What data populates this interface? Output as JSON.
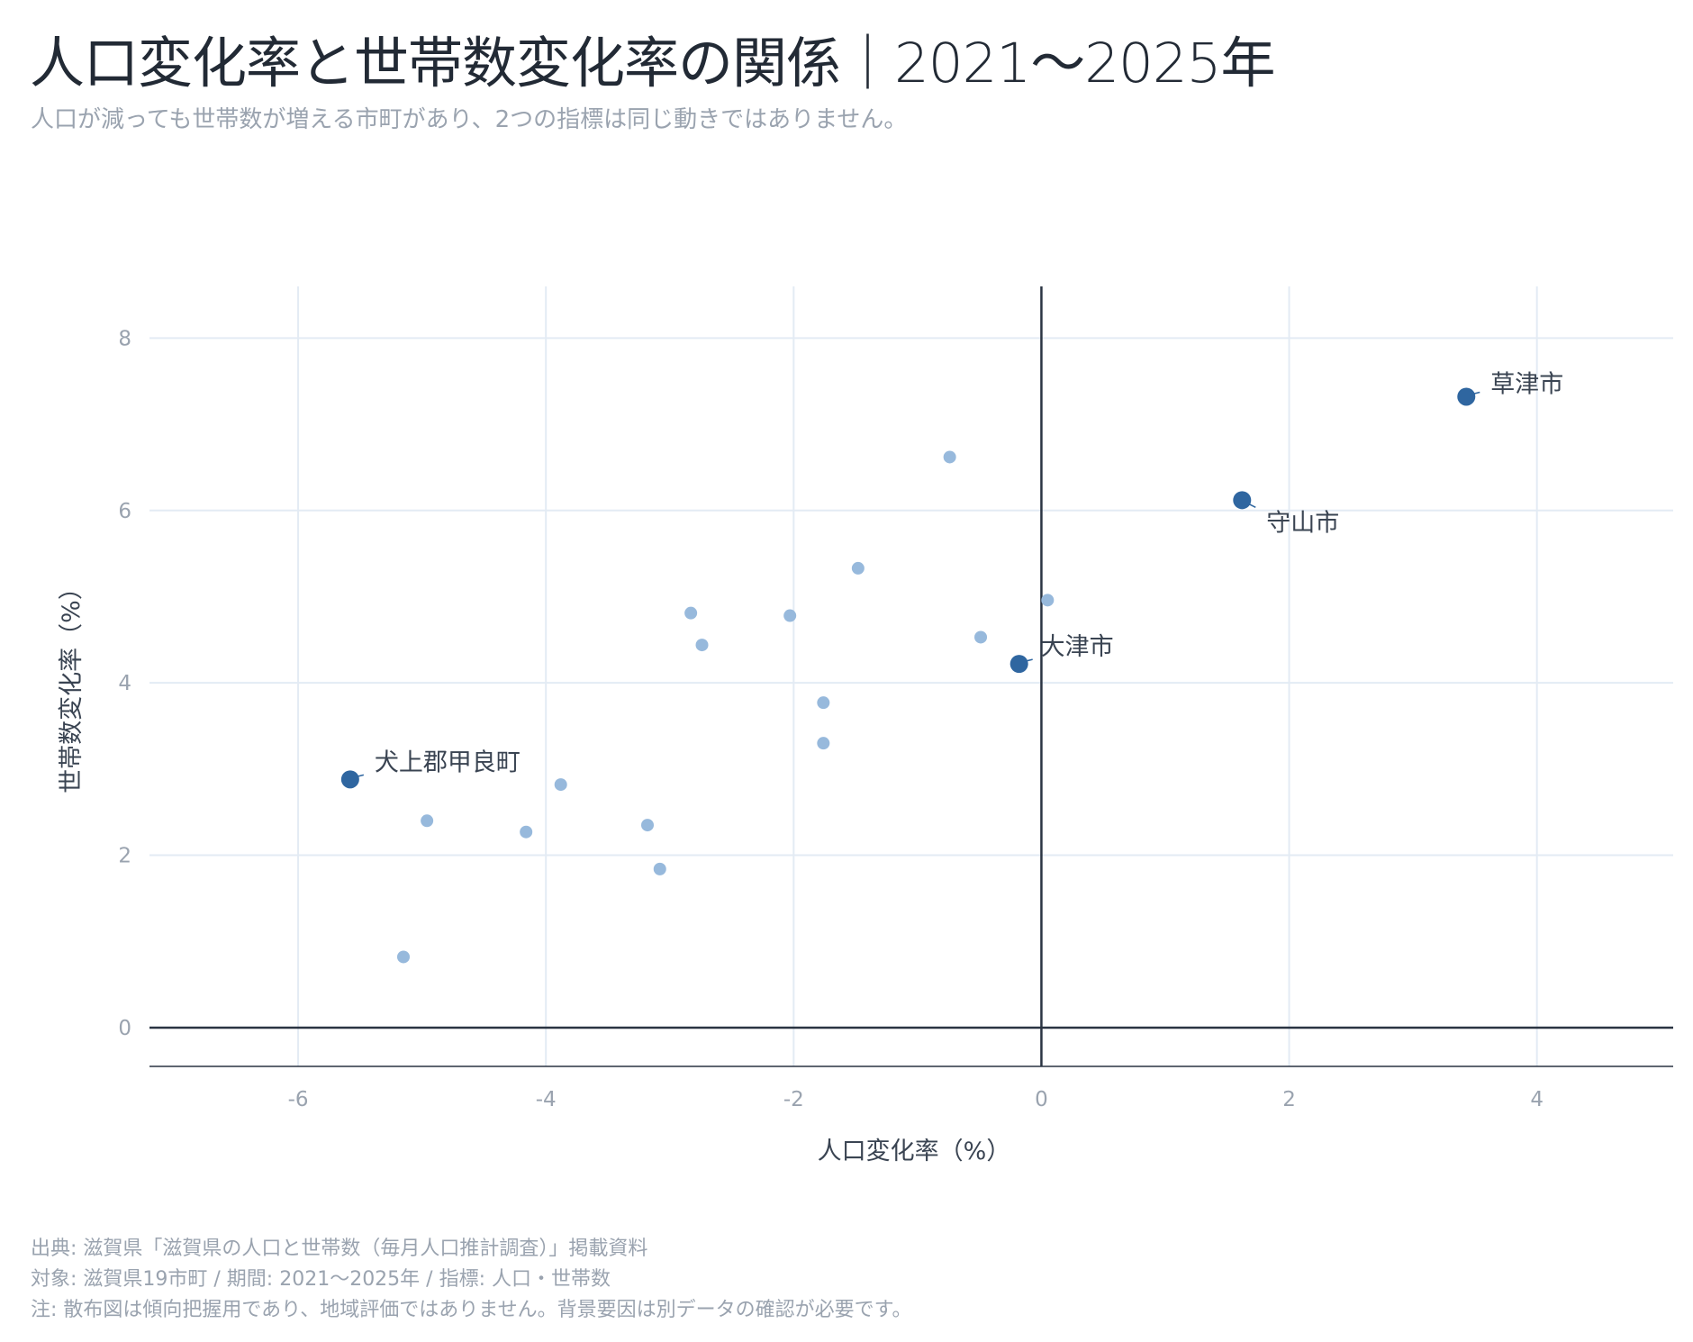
{
  "title": "人口変化率と世帯数変化率の関係｜2021〜2025年",
  "subtitle": "人口が減っても世帯数が増える市町があり、2つの指標は同じ動きではありません。",
  "footer": {
    "source": "出典: 滋賀県「滋賀県の人口と世帯数（毎月人口推計調査）」掲載資料",
    "scope": "対象: 滋賀県19市町 / 期間: 2021〜2025年 / 指標: 人口・世帯数",
    "note": "注: 散布図は傾向把握用であり、地域評価ではありません。背景要因は別データの確認が必要です。"
  },
  "colors": {
    "highlight": "#2f66a0",
    "point": "#97b9dc",
    "grid": "#e3ebf4",
    "axis": "#2a3442",
    "tick": "#9aa3af",
    "label": "#3a4452"
  },
  "chart_data": {
    "type": "scatter",
    "xlabel": "人口変化率（%）",
    "ylabel": "世帯数変化率（%）",
    "xlim": [
      -7.2,
      5.1
    ],
    "ylim": [
      -0.45,
      8.6
    ],
    "xticks": [
      -6,
      -4,
      -2,
      0,
      2,
      4
    ],
    "yticks": [
      0,
      2,
      4,
      6,
      8
    ],
    "grid": true,
    "points": [
      {
        "x": 3.43,
        "y": 7.32,
        "highlight": true,
        "label": "草津市"
      },
      {
        "x": 1.62,
        "y": 6.12,
        "highlight": true,
        "label": "守山市"
      },
      {
        "x": -0.18,
        "y": 4.22,
        "highlight": true,
        "label": "大津市"
      },
      {
        "x": -5.58,
        "y": 2.88,
        "highlight": true,
        "label": "犬上郡甲良町"
      },
      {
        "x": -0.74,
        "y": 6.62
      },
      {
        "x": -1.48,
        "y": 5.33
      },
      {
        "x": 0.05,
        "y": 4.96
      },
      {
        "x": -0.49,
        "y": 4.53
      },
      {
        "x": -2.83,
        "y": 4.81
      },
      {
        "x": -2.74,
        "y": 4.44
      },
      {
        "x": -2.03,
        "y": 4.78
      },
      {
        "x": -1.76,
        "y": 3.77
      },
      {
        "x": -1.76,
        "y": 3.3
      },
      {
        "x": -3.88,
        "y": 2.82
      },
      {
        "x": -4.96,
        "y": 2.4
      },
      {
        "x": -4.16,
        "y": 2.27
      },
      {
        "x": -3.18,
        "y": 2.35
      },
      {
        "x": -3.08,
        "y": 1.84
      },
      {
        "x": -5.15,
        "y": 0.82
      }
    ]
  }
}
